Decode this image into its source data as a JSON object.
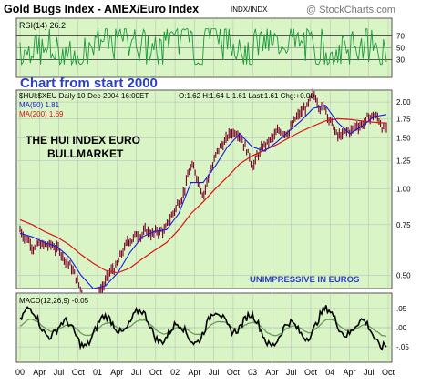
{
  "header": {
    "title": "Gold Bugs Index - AMEX/Euro Index",
    "ticker": "INDX/INDX",
    "watermark": "@ StockCharts.com"
  },
  "rsi_panel": {
    "label": "RSI(14) 26.2",
    "annotation": "Chart from start 2000",
    "ticks": [
      "70",
      "50",
      "30"
    ]
  },
  "price_panel": {
    "info_label": "$HUI:$XEU Daily 10-Dec-2004 16:00ET",
    "quote": "O:1.62 H:1.64 L:1.61 Last:1.61 Chg:+0.00",
    "ma50_label": "MA(50) 1.81",
    "ma200_label": "MA(200) 1.69",
    "headline_1": "THE HUI INDEX EURO",
    "headline_2": "BULLMARKET",
    "note": "UNIMPRESSIVE IN EUROS",
    "ticks": [
      "2.00",
      "1.75",
      "1.50",
      "1.25",
      "1.00",
      "0.75",
      "0.50"
    ]
  },
  "macd_panel": {
    "label": "MACD(12,26,9) -0.05",
    "ticks": [
      ".05",
      ".00",
      "-.05"
    ]
  },
  "x_axis": {
    "labels": [
      "00",
      "Apr",
      "Jul",
      "Oct",
      "01",
      "Apr",
      "Jul",
      "Oct",
      "02",
      "Apr",
      "Jul",
      "Oct",
      "03",
      "Apr",
      "Jul",
      "Oct",
      "04",
      "Apr",
      "Jul",
      "Oct"
    ]
  },
  "colors": {
    "panel_bg": "#d9f5c6",
    "grid": "#b8b8b8",
    "rsi_line": "#1a9a3a",
    "price_bar": "#7a0026",
    "ma50": "#1a1adb",
    "ma200": "#dd1111",
    "macd_line": "#000000",
    "signal_line": "#6a9a5a",
    "annotation_blue": "#2b3fc4"
  },
  "chart_data": {
    "type": "line",
    "title": "Gold Bugs Index - AMEX/Euro Index",
    "x": [
      "2000-01",
      "2000-03",
      "2000-05",
      "2000-07",
      "2000-09",
      "2000-11",
      "2001-01",
      "2001-03",
      "2001-05",
      "2001-07",
      "2001-09",
      "2001-11",
      "2002-01",
      "2002-03",
      "2002-05",
      "2002-07",
      "2002-09",
      "2002-11",
      "2003-01",
      "2003-03",
      "2003-05",
      "2003-07",
      "2003-09",
      "2003-11",
      "2004-01",
      "2004-03",
      "2004-05",
      "2004-07",
      "2004-09",
      "2004-11",
      "2004-12"
    ],
    "y_scale": "log",
    "ylim": [
      0.45,
      2.2
    ],
    "series": [
      {
        "name": "$HUI:$XEU",
        "values": [
          0.72,
          0.66,
          0.63,
          0.62,
          0.56,
          0.44,
          0.42,
          0.48,
          0.54,
          0.66,
          0.72,
          0.7,
          0.72,
          0.9,
          1.2,
          1.0,
          1.3,
          1.5,
          1.65,
          1.25,
          1.4,
          1.5,
          1.65,
          1.8,
          2.0,
          1.95,
          1.5,
          1.55,
          1.7,
          1.8,
          1.61
        ]
      },
      {
        "name": "MA(50)",
        "values": [
          0.7,
          0.68,
          0.65,
          0.63,
          0.58,
          0.5,
          0.45,
          0.46,
          0.51,
          0.6,
          0.68,
          0.71,
          0.72,
          0.82,
          1.05,
          1.05,
          1.2,
          1.4,
          1.55,
          1.4,
          1.35,
          1.45,
          1.58,
          1.72,
          1.9,
          1.95,
          1.7,
          1.55,
          1.65,
          1.78,
          1.81
        ]
      },
      {
        "name": "MA(200)",
        "values": [
          0.78,
          0.75,
          0.71,
          0.68,
          0.64,
          0.59,
          0.55,
          0.52,
          0.51,
          0.53,
          0.57,
          0.61,
          0.65,
          0.72,
          0.82,
          0.9,
          1.0,
          1.1,
          1.22,
          1.3,
          1.36,
          1.42,
          1.5,
          1.58,
          1.65,
          1.72,
          1.75,
          1.74,
          1.72,
          1.7,
          1.69
        ]
      }
    ],
    "rsi": {
      "label": "RSI(14)",
      "last": 26.2,
      "ylim": [
        0,
        100
      ],
      "levels": [
        70,
        50,
        30
      ]
    },
    "macd": {
      "label": "MACD(12,26,9)",
      "last": -0.05,
      "ylim": [
        -0.09,
        0.09
      ],
      "levels": [
        0.05,
        0.0,
        -0.05
      ]
    },
    "grid": true
  }
}
